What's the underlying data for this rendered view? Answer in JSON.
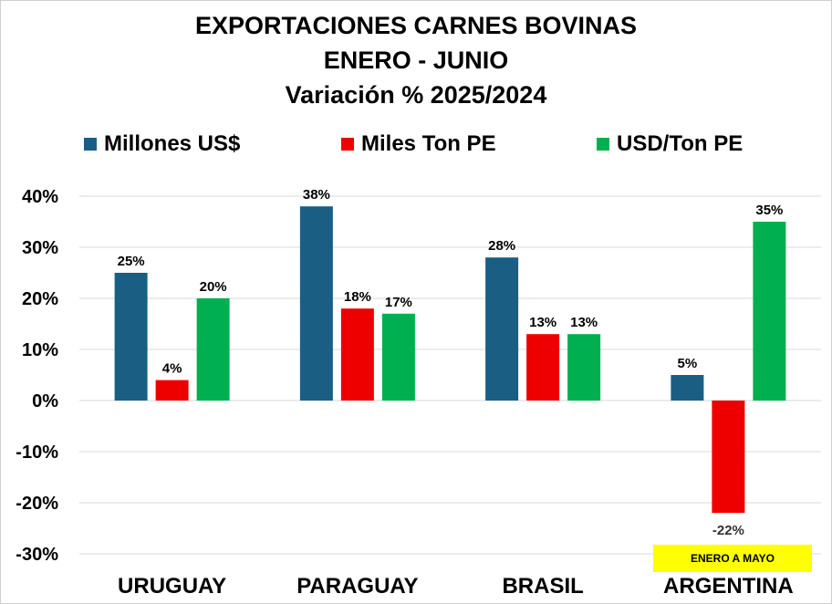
{
  "chart_data": {
    "type": "bar",
    "title": "EXPORTACIONES CARNES BOVINAS",
    "subtitle_1": "ENERO - JUNIO",
    "subtitle_2": "Variación % 2025/2024",
    "categories": [
      "URUGUAY",
      "PARAGUAY",
      "BRASIL",
      "ARGENTINA"
    ],
    "series": [
      {
        "name": "Millones US$",
        "color": "#1a5e84",
        "values": [
          25,
          38,
          28,
          5
        ],
        "labels": [
          "25%",
          "38%",
          "28%",
          "5%"
        ]
      },
      {
        "name": "Miles Ton PE",
        "color": "#ee0000",
        "values": [
          4,
          18,
          13,
          -22
        ],
        "labels": [
          "4%",
          "18%",
          "13%",
          "-22%"
        ]
      },
      {
        "name": "USD/Ton PE",
        "color": "#00b050",
        "values": [
          20,
          17,
          13,
          35
        ],
        "labels": [
          "20%",
          "17%",
          "13%",
          "35%"
        ]
      }
    ],
    "ylim": [
      -30,
      40
    ],
    "yticks": [
      40,
      30,
      20,
      10,
      0,
      -10,
      -20,
      -30
    ],
    "ytick_labels": [
      "40%",
      "30%",
      "20%",
      "10%",
      "0%",
      "-10%",
      "-20%",
      "-30%"
    ],
    "grid": true,
    "legend_position": "top",
    "annotation": "ENERO A MAYO",
    "annotation_color": "#ffff00"
  }
}
